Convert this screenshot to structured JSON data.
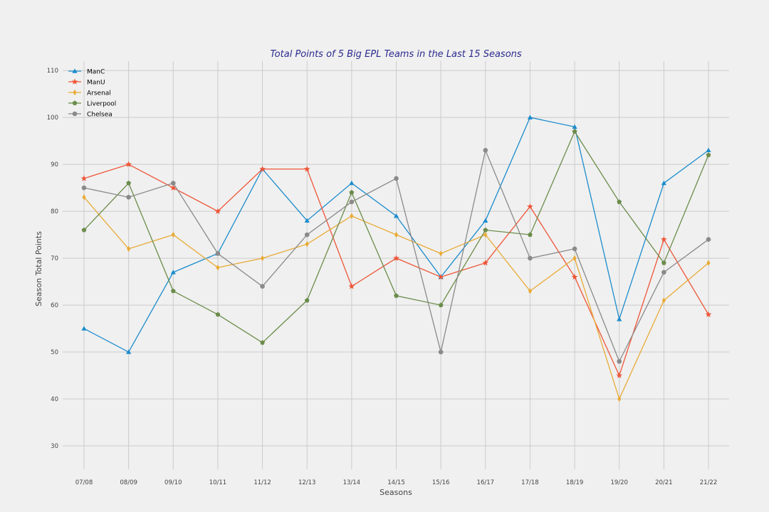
{
  "chart_data": {
    "type": "line",
    "title": "Total Points of 5 Big EPL Teams in the Last 15 Seasons",
    "xlabel": "Seasons",
    "ylabel": "Season Total Points",
    "ylim": [
      25,
      112
    ],
    "yticks": [
      30,
      40,
      50,
      60,
      70,
      80,
      90,
      100,
      110
    ],
    "grid": true,
    "legend_position": "top-left",
    "categories": [
      "07/08",
      "08/09",
      "09/10",
      "10/11",
      "11/12",
      "12/13",
      "13/14",
      "14/15",
      "15/16",
      "16/17",
      "17/18",
      "18/19",
      "19/20",
      "20/21",
      "21/22"
    ],
    "series": [
      {
        "name": "ManC",
        "color": "#1a8ccc",
        "marker": "triangle",
        "values": [
          55,
          50,
          67,
          71,
          89,
          78,
          86,
          79,
          66,
          78,
          100,
          98,
          57,
          86,
          93
        ]
      },
      {
        "name": "ManU",
        "color": "#ee5537",
        "marker": "star",
        "values": [
          87,
          90,
          85,
          80,
          89,
          89,
          64,
          70,
          66,
          69,
          81,
          66,
          45,
          74,
          58
        ]
      },
      {
        "name": "Arsenal",
        "color": "#e8ab37",
        "marker": "diamond",
        "values": [
          83,
          72,
          75,
          68,
          70,
          73,
          79,
          75,
          71,
          75,
          63,
          70,
          40,
          61,
          69
        ]
      },
      {
        "name": "Liverpool",
        "color": "#6b8c4a",
        "marker": "pentagon",
        "values": [
          76,
          86,
          63,
          58,
          52,
          61,
          84,
          62,
          60,
          76,
          75,
          97,
          82,
          69,
          92
        ]
      },
      {
        "name": "Chelsea",
        "color": "#8a8a8a",
        "marker": "circle",
        "values": [
          85,
          83,
          86,
          71,
          64,
          75,
          82,
          87,
          50,
          93,
          70,
          72,
          48,
          67,
          74
        ]
      }
    ]
  }
}
